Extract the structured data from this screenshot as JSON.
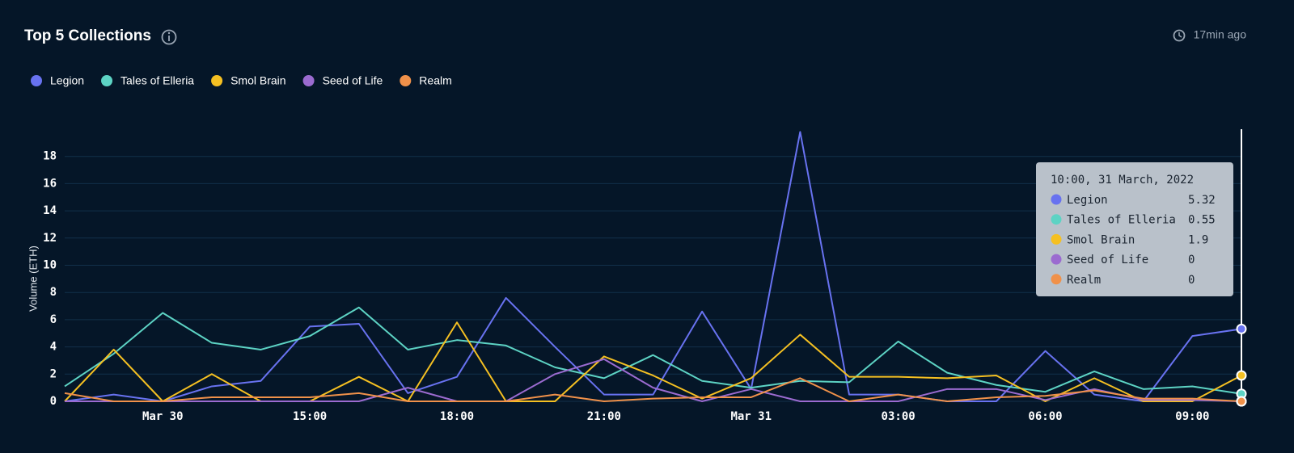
{
  "chart_data": {
    "type": "line",
    "title": "Top 5 Collections",
    "updated": "17min ago",
    "y_label": "Volume (ETH)",
    "categories": [
      null,
      null,
      "Mar 30",
      null,
      null,
      "15:00",
      null,
      null,
      "18:00",
      null,
      null,
      "21:00",
      null,
      null,
      "Mar 31",
      null,
      null,
      "03:00",
      null,
      null,
      "06:00",
      null,
      null,
      "09:00",
      null
    ],
    "ylim": [
      0,
      20
    ],
    "yticks": [
      0,
      2,
      4,
      6,
      8,
      10,
      12,
      14,
      16,
      18
    ],
    "grid": true,
    "legend": "top-left",
    "tooltip_title": "10:00, 31 March, 2022",
    "series": [
      {
        "name": "Legion",
        "color": "#6872f0",
        "values": [
          0,
          0.5,
          0,
          1.1,
          1.5,
          5.5,
          5.7,
          0.6,
          1.8,
          7.6,
          4,
          0.5,
          0.5,
          6.6,
          0.9,
          19.8,
          0.5,
          0.5,
          0,
          0,
          3.7,
          0.5,
          0,
          4.8,
          5.32
        ]
      },
      {
        "name": "Tales of Elleria",
        "color": "#5dd3c4",
        "values": [
          1.1,
          3.5,
          6.5,
          4.3,
          3.8,
          4.8,
          6.9,
          3.8,
          4.5,
          4.1,
          2.5,
          1.7,
          3.4,
          1.5,
          1.0,
          1.5,
          1.4,
          4.4,
          2.1,
          1.2,
          0.7,
          2.2,
          0.9,
          1.1,
          0.55
        ]
      },
      {
        "name": "Smol Brain",
        "color": "#f5c022",
        "values": [
          0,
          3.8,
          0,
          2.0,
          0,
          0,
          1.8,
          0,
          5.8,
          0,
          0,
          3.3,
          1.9,
          0.2,
          1.7,
          4.9,
          1.8,
          1.8,
          1.7,
          1.9,
          0,
          1.7,
          0,
          0,
          1.9
        ]
      },
      {
        "name": "Seed of Life",
        "color": "#9b6bd0",
        "values": [
          0,
          0,
          0,
          0,
          0,
          0,
          0,
          1.0,
          0,
          0,
          2.0,
          3.1,
          1.0,
          0,
          0.9,
          0,
          0,
          0,
          0.9,
          0.9,
          0.1,
          0.9,
          0.1,
          0.1,
          0
        ]
      },
      {
        "name": "Realm",
        "color": "#f0914a",
        "values": [
          0.6,
          0,
          0,
          0.3,
          0.3,
          0.3,
          0.6,
          0,
          0,
          0,
          0.5,
          0,
          0.2,
          0.3,
          0.3,
          1.7,
          0,
          0.5,
          0,
          0.3,
          0.4,
          0.8,
          0.2,
          0.2,
          0
        ]
      }
    ]
  }
}
